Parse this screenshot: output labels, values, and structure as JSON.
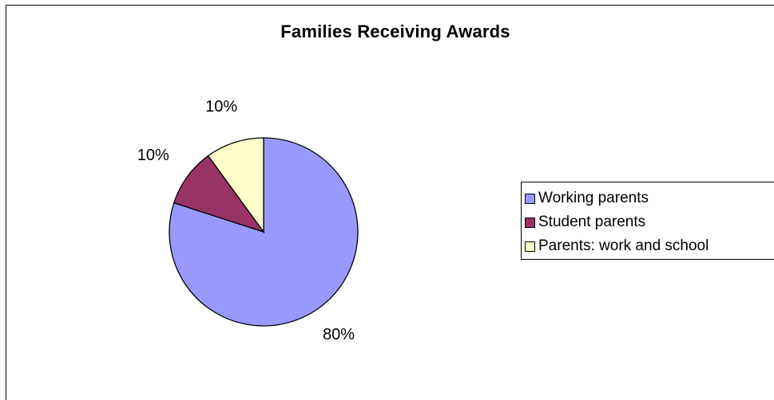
{
  "chart_data": {
    "type": "pie",
    "title": "Families Receiving Awards",
    "categories": [
      "Working parents",
      "Student parents",
      "Parents: work and school"
    ],
    "values": [
      80,
      10,
      10
    ],
    "value_labels": [
      "80%",
      "10%",
      "10%"
    ],
    "colors": [
      "#9999ff",
      "#993366",
      "#ffffcc"
    ],
    "legend_position": "right"
  }
}
